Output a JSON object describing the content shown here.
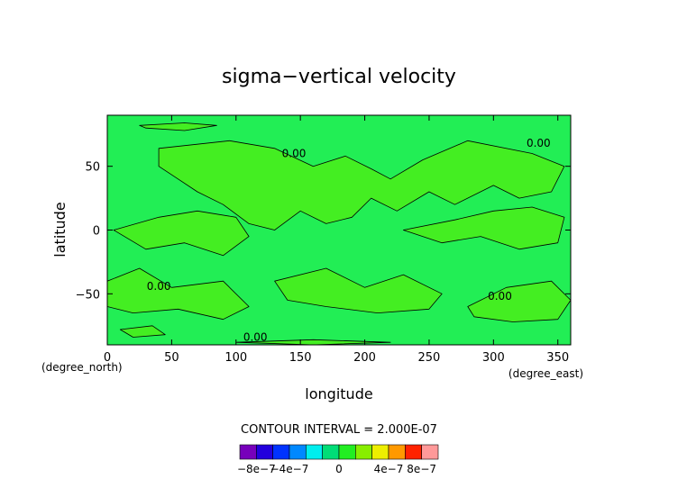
{
  "chart_data": {
    "type": "heatmap",
    "title": "sigma−vertical velocity",
    "xlabel": "longitude",
    "ylabel": "latitude",
    "x_unit": "(degree_east)",
    "y_unit": "(degree_north)",
    "xlim": [
      0,
      360
    ],
    "ylim": [
      -90,
      90
    ],
    "x_ticks": [
      0,
      50,
      100,
      150,
      200,
      250,
      300,
      350
    ],
    "y_ticks": [
      -50,
      0,
      50
    ],
    "contour_interval_text": "CONTOUR INTERVAL = 2.000E-07",
    "contour_labels": [
      {
        "text": "0.00",
        "x": 145,
        "y": 60
      },
      {
        "text": "0.00",
        "x": 335,
        "y": 68
      },
      {
        "text": "0.00",
        "x": 40,
        "y": -44
      },
      {
        "text": "0.00",
        "x": 305,
        "y": -52
      },
      {
        "text": "0.00",
        "x": 115,
        "y": -84
      }
    ],
    "background_color": "#22ee55",
    "positive_region_color": "#44ee22",
    "positive_regions": [
      [
        [
          25,
          82
        ],
        [
          60,
          84
        ],
        [
          85,
          82
        ],
        [
          60,
          78
        ],
        [
          30,
          80
        ]
      ],
      [
        [
          40,
          64
        ],
        [
          95,
          70
        ],
        [
          130,
          64
        ],
        [
          160,
          50
        ],
        [
          185,
          58
        ],
        [
          205,
          48
        ],
        [
          220,
          40
        ],
        [
          245,
          55
        ],
        [
          280,
          70
        ],
        [
          330,
          60
        ],
        [
          355,
          50
        ],
        [
          345,
          30
        ],
        [
          320,
          25
        ],
        [
          300,
          35
        ],
        [
          270,
          20
        ],
        [
          250,
          30
        ],
        [
          225,
          15
        ],
        [
          205,
          25
        ],
        [
          190,
          10
        ],
        [
          170,
          5
        ],
        [
          150,
          15
        ],
        [
          130,
          0
        ],
        [
          110,
          5
        ],
        [
          90,
          20
        ],
        [
          70,
          30
        ],
        [
          55,
          40
        ],
        [
          40,
          50
        ]
      ],
      [
        [
          5,
          0
        ],
        [
          30,
          -15
        ],
        [
          60,
          -10
        ],
        [
          90,
          -20
        ],
        [
          110,
          -5
        ],
        [
          100,
          10
        ],
        [
          70,
          15
        ],
        [
          40,
          10
        ]
      ],
      [
        [
          230,
          0
        ],
        [
          260,
          -10
        ],
        [
          290,
          -5
        ],
        [
          320,
          -15
        ],
        [
          350,
          -10
        ],
        [
          355,
          10
        ],
        [
          330,
          18
        ],
        [
          300,
          15
        ],
        [
          270,
          8
        ]
      ],
      [
        [
          0,
          -40
        ],
        [
          25,
          -30
        ],
        [
          50,
          -45
        ],
        [
          90,
          -40
        ],
        [
          110,
          -60
        ],
        [
          90,
          -70
        ],
        [
          55,
          -62
        ],
        [
          20,
          -65
        ],
        [
          0,
          -60
        ]
      ],
      [
        [
          130,
          -40
        ],
        [
          170,
          -30
        ],
        [
          200,
          -45
        ],
        [
          230,
          -35
        ],
        [
          260,
          -50
        ],
        [
          250,
          -62
        ],
        [
          210,
          -65
        ],
        [
          170,
          -60
        ],
        [
          140,
          -55
        ]
      ],
      [
        [
          280,
          -60
        ],
        [
          310,
          -45
        ],
        [
          345,
          -40
        ],
        [
          360,
          -55
        ],
        [
          350,
          -70
        ],
        [
          315,
          -72
        ],
        [
          285,
          -68
        ]
      ],
      [
        [
          10,
          -78
        ],
        [
          35,
          -75
        ],
        [
          45,
          -82
        ],
        [
          20,
          -84
        ]
      ],
      [
        [
          100,
          -88
        ],
        [
          160,
          -86
        ],
        [
          220,
          -88
        ],
        [
          160,
          -90
        ]
      ]
    ],
    "colorbar": {
      "colors": [
        "#7700bb",
        "#2200dd",
        "#0033ff",
        "#0088ff",
        "#00eeee",
        "#00dd77",
        "#22ee22",
        "#88ee00",
        "#eeee00",
        "#ff9900",
        "#ff2200",
        "#ff9999"
      ],
      "tick_labels": [
        "−8e−7",
        "−4e−7",
        "0",
        "4e−7",
        "8e−7"
      ]
    }
  }
}
